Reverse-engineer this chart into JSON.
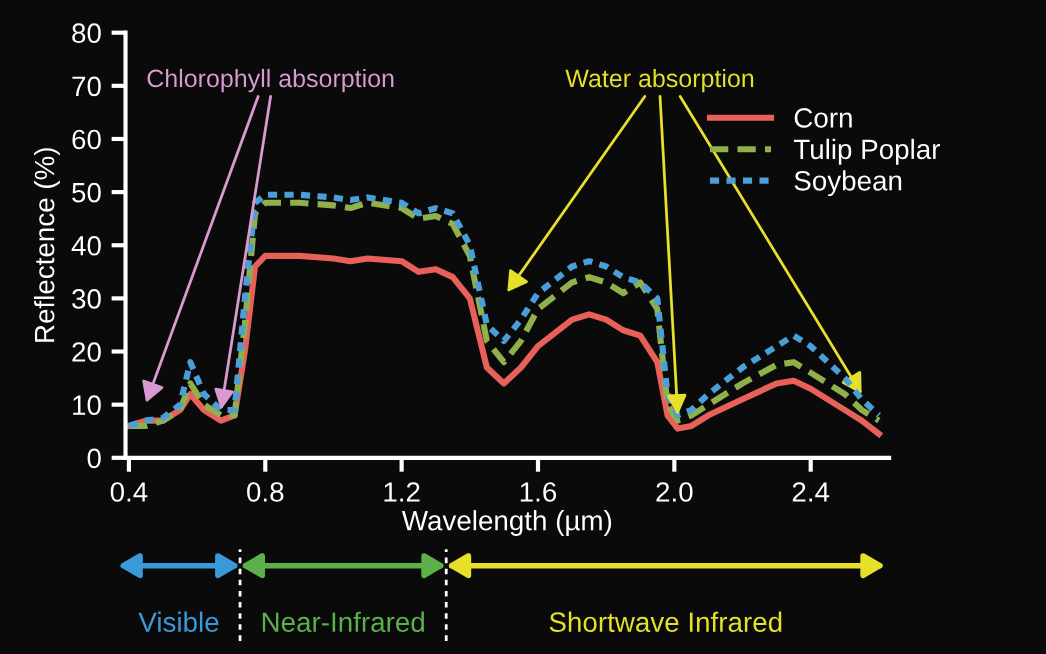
{
  "chart_data": {
    "type": "line",
    "xlabel": "Wavelength (µm)",
    "ylabel": "Reflectence (%)",
    "x": [
      0.4,
      0.45,
      0.5,
      0.55,
      0.58,
      0.62,
      0.67,
      0.71,
      0.74,
      0.77,
      0.8,
      0.9,
      1.0,
      1.05,
      1.1,
      1.2,
      1.25,
      1.3,
      1.35,
      1.4,
      1.45,
      1.5,
      1.55,
      1.6,
      1.7,
      1.75,
      1.8,
      1.85,
      1.9,
      1.95,
      1.98,
      2.01,
      2.05,
      2.1,
      2.2,
      2.3,
      2.35,
      2.4,
      2.5,
      2.55,
      2.6
    ],
    "series": [
      {
        "name": "Corn",
        "color": "#e8605a",
        "line_style": "solid",
        "values": [
          6,
          7,
          7,
          9,
          12,
          9,
          7,
          8,
          20,
          36,
          38,
          38,
          37.5,
          37,
          37.5,
          37,
          35,
          35.5,
          34,
          30,
          17,
          14,
          17,
          21,
          26,
          27,
          26,
          24,
          23,
          18,
          8,
          5.5,
          6,
          8,
          11,
          14,
          14.5,
          13,
          9,
          7,
          4.5
        ]
      },
      {
        "name": "Tulip Poplar",
        "color": "#8fb04a",
        "line_style": "dashed",
        "values": [
          6,
          6,
          7,
          9,
          14,
          10,
          8,
          8,
          25,
          46,
          48,
          48,
          47.5,
          47,
          48,
          47,
          45,
          45.5,
          44,
          38,
          22,
          18,
          22,
          28,
          33,
          34,
          33,
          31,
          33,
          28,
          10,
          7,
          8,
          10,
          14,
          17.5,
          18,
          16,
          12,
          9,
          7
        ]
      },
      {
        "name": "Soybean",
        "color": "#4a9fd8",
        "line_style": "dotted",
        "values": [
          6,
          7,
          7.5,
          10,
          18,
          12,
          9,
          9,
          30,
          48,
          49.5,
          49.5,
          49,
          48.5,
          49,
          48,
          46,
          47,
          46,
          40,
          25,
          22,
          26,
          31,
          36,
          37,
          36,
          34,
          33,
          30,
          12,
          8,
          9,
          12,
          17,
          21,
          23,
          21,
          15,
          11,
          8
        ]
      }
    ],
    "xlim": [
      0.39,
      2.63
    ],
    "ylim": [
      0,
      80
    ],
    "xticks": [
      0.4,
      0.8,
      1.2,
      1.6,
      {
        "value": 2.0,
        "label": "2.0"
      },
      2.4
    ],
    "yticks": [
      0,
      10,
      20,
      30,
      40,
      50,
      60,
      70,
      80
    ],
    "grid": false,
    "legend": "right",
    "marker": "none",
    "annotations": [
      {
        "text": "Chlorophyll absorption",
        "x": 0.67,
        "y": 9
      },
      {
        "text": "Water absorption",
        "x": 2.01,
        "y": 8
      },
      "Visible",
      "Near-Infrared",
      "Shortwave Infrared"
    ]
  }
}
